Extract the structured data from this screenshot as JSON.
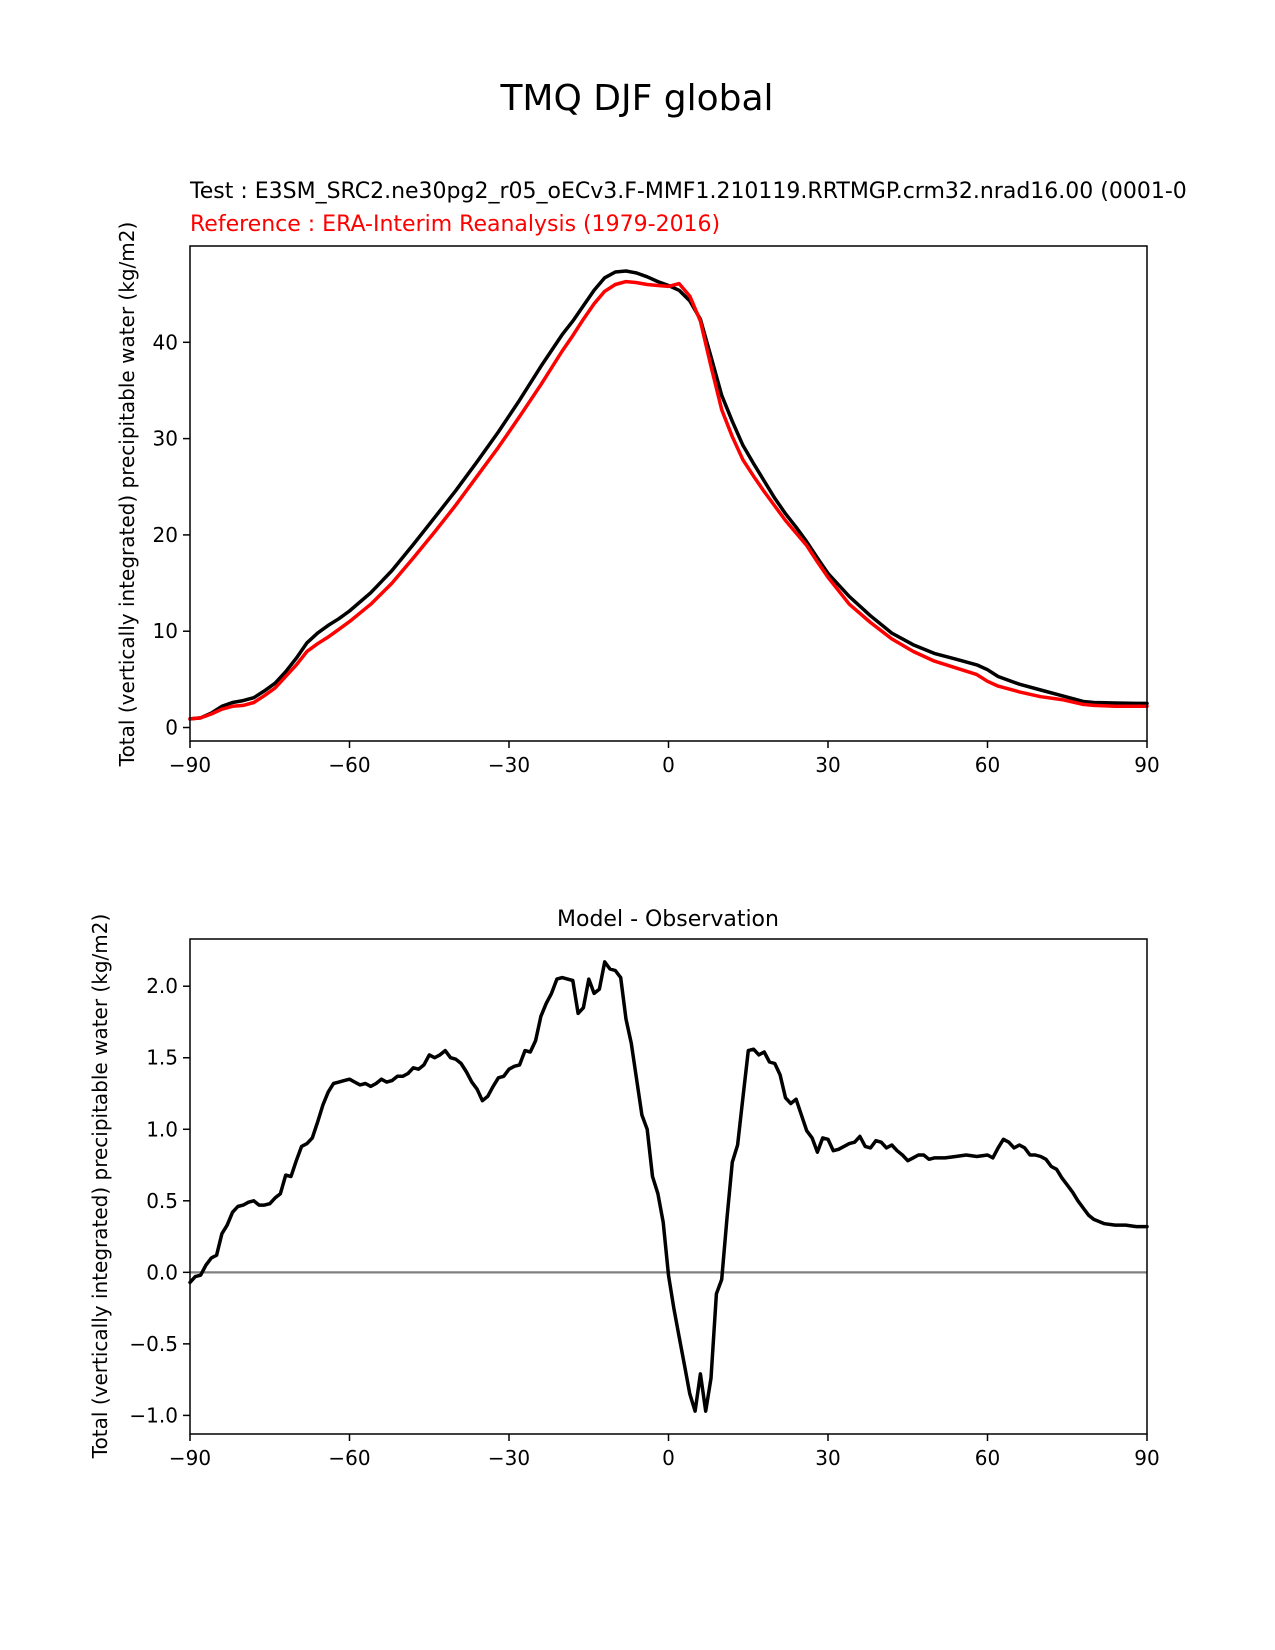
{
  "suptitle": "TMQ DJF global",
  "chart_data": [
    {
      "type": "line",
      "title_test": "Test : E3SM_SRC2.ne30pg2_r05_oECv3.F-MMF1.210119.RRTMGP.crm32.nrad16.00 (0001-0",
      "title_ref": "Reference : ERA-Interim Reanalysis (1979-2016)",
      "xlabel": "",
      "ylabel": "Total (vertically integrated) precipitable water (kg/m2)",
      "xlim": [
        -90,
        90
      ],
      "ylim": [
        -1.4,
        50
      ],
      "xticks": [
        -90,
        -60,
        -30,
        0,
        30,
        60,
        90
      ],
      "xtick_labels": [
        "−90",
        "−60",
        "−30",
        "0",
        "30",
        "60",
        "90"
      ],
      "yticks": [
        0,
        10,
        20,
        30,
        40
      ],
      "ytick_labels": [
        "0",
        "10",
        "20",
        "30",
        "40"
      ],
      "series": [
        {
          "name": "Test",
          "color": "#000000",
          "x": [
            -90,
            -88,
            -86,
            -84,
            -82,
            -80,
            -78,
            -76,
            -74,
            -72,
            -70,
            -68,
            -66,
            -64,
            -62,
            -60,
            -56,
            -52,
            -48,
            -44,
            -40,
            -36,
            -32,
            -28,
            -24,
            -20,
            -18,
            -16,
            -14,
            -12,
            -10,
            -8,
            -6,
            -4,
            -2,
            0,
            2,
            4,
            6,
            8,
            10,
            12,
            14,
            16,
            18,
            20,
            22,
            24,
            26,
            28,
            30,
            34,
            38,
            42,
            46,
            50,
            54,
            58,
            60,
            62,
            66,
            70,
            74,
            78,
            80,
            84,
            88,
            90
          ],
          "y": [
            0.9,
            1.0,
            1.5,
            2.2,
            2.6,
            2.8,
            3.1,
            3.8,
            4.6,
            5.8,
            7.2,
            8.8,
            9.8,
            10.6,
            11.3,
            12.1,
            14.0,
            16.3,
            19.0,
            21.8,
            24.6,
            27.6,
            30.7,
            34.0,
            37.5,
            40.8,
            42.2,
            43.8,
            45.4,
            46.7,
            47.3,
            47.4,
            47.2,
            46.8,
            46.3,
            45.9,
            45.4,
            44.3,
            42.4,
            38.5,
            34.5,
            31.8,
            29.3,
            27.4,
            25.6,
            23.8,
            22.2,
            20.8,
            19.3,
            17.6,
            16.0,
            13.6,
            11.6,
            9.8,
            8.6,
            7.7,
            7.1,
            6.5,
            6.0,
            5.3,
            4.5,
            3.9,
            3.3,
            2.7,
            2.6,
            2.55,
            2.5,
            2.5
          ]
        },
        {
          "name": "Reference",
          "color": "#ff0000",
          "x": [
            -90,
            -88,
            -86,
            -84,
            -82,
            -80,
            -78,
            -76,
            -74,
            -72,
            -70,
            -68,
            -66,
            -64,
            -62,
            -60,
            -56,
            -52,
            -48,
            -44,
            -40,
            -36,
            -32,
            -28,
            -24,
            -20,
            -18,
            -16,
            -14,
            -12,
            -10,
            -8,
            -6,
            -4,
            -2,
            0,
            2,
            4,
            6,
            8,
            10,
            12,
            14,
            16,
            18,
            20,
            22,
            24,
            26,
            28,
            30,
            34,
            38,
            42,
            46,
            50,
            54,
            58,
            60,
            62,
            66,
            70,
            74,
            78,
            80,
            84,
            88,
            90
          ],
          "y": [
            0.9,
            1.0,
            1.4,
            1.9,
            2.2,
            2.3,
            2.6,
            3.3,
            4.1,
            5.3,
            6.5,
            7.9,
            8.7,
            9.4,
            10.2,
            11.0,
            12.8,
            15.0,
            17.6,
            20.3,
            23.1,
            26.1,
            29.1,
            32.3,
            35.6,
            39.1,
            40.7,
            42.4,
            44.0,
            45.3,
            46.0,
            46.3,
            46.2,
            46.0,
            45.9,
            45.8,
            46.1,
            44.8,
            42.2,
            37.5,
            33.0,
            30.2,
            27.8,
            26.1,
            24.5,
            23.0,
            21.5,
            20.2,
            18.9,
            17.2,
            15.6,
            12.8,
            10.9,
            9.2,
            7.9,
            6.9,
            6.2,
            5.5,
            4.8,
            4.3,
            3.7,
            3.2,
            2.9,
            2.4,
            2.3,
            2.2,
            2.2,
            2.2
          ]
        }
      ]
    },
    {
      "type": "line",
      "title": "Model - Observation",
      "xlabel": "",
      "ylabel": "Total (vertically integrated) precipitable water (kg/m2)",
      "xlim": [
        -90,
        90
      ],
      "ylim": [
        -1.13,
        2.33
      ],
      "xticks": [
        -90,
        -60,
        -30,
        0,
        30,
        60,
        90
      ],
      "xtick_labels": [
        "−90",
        "−60",
        "−30",
        "0",
        "30",
        "60",
        "90"
      ],
      "yticks": [
        -1.0,
        -0.5,
        0.0,
        0.5,
        1.0,
        1.5,
        2.0
      ],
      "ytick_labels": [
        "−1.0",
        "−0.5",
        "0.0",
        "0.5",
        "1.0",
        "1.5",
        "2.0"
      ],
      "reference_line": {
        "y": 0,
        "color": "#808080"
      },
      "series": [
        {
          "name": "Model - Observation",
          "color": "#000000",
          "x": [
            -90,
            -89,
            -88,
            -87,
            -86,
            -85,
            -84,
            -83,
            -82,
            -81,
            -80,
            -79,
            -78,
            -77,
            -76,
            -75,
            -74,
            -73,
            -72,
            -71,
            -70,
            -69,
            -68,
            -67,
            -66,
            -65,
            -64,
            -63,
            -62,
            -61,
            -60,
            -59,
            -58,
            -57,
            -56,
            -55,
            -54,
            -53,
            -52,
            -51,
            -50,
            -49,
            -48,
            -47,
            -46,
            -45,
            -44,
            -43,
            -42,
            -41,
            -40,
            -39,
            -38,
            -37,
            -36,
            -35,
            -34,
            -33,
            -32,
            -31,
            -30,
            -29,
            -28,
            -27,
            -26,
            -25,
            -24,
            -23,
            -22,
            -21,
            -20,
            -19,
            -18,
            -17,
            -16,
            -15,
            -14,
            -13,
            -12,
            -11,
            -10,
            -9,
            -8,
            -7,
            -6,
            -5,
            -4,
            -3,
            -2,
            -1,
            0,
            1,
            2,
            3,
            4,
            5,
            6,
            7,
            8,
            9,
            10,
            11,
            12,
            13,
            14,
            15,
            16,
            17,
            18,
            19,
            20,
            21,
            22,
            23,
            24,
            25,
            26,
            27,
            28,
            29,
            30,
            31,
            32,
            33,
            34,
            35,
            36,
            37,
            38,
            39,
            40,
            41,
            42,
            43,
            44,
            45,
            46,
            47,
            48,
            49,
            50,
            52,
            54,
            56,
            58,
            60,
            61,
            62,
            63,
            64,
            65,
            66,
            67,
            68,
            69,
            70,
            71,
            72,
            73,
            74,
            75,
            76,
            77,
            78,
            79,
            80,
            82,
            84,
            86,
            88,
            90
          ],
          "y": [
            -0.07,
            -0.03,
            -0.02,
            0.05,
            0.1,
            0.12,
            0.27,
            0.33,
            0.42,
            0.46,
            0.47,
            0.49,
            0.5,
            0.47,
            0.47,
            0.48,
            0.52,
            0.55,
            0.68,
            0.67,
            0.78,
            0.88,
            0.9,
            0.94,
            1.05,
            1.17,
            1.26,
            1.32,
            1.33,
            1.34,
            1.35,
            1.33,
            1.31,
            1.32,
            1.3,
            1.32,
            1.35,
            1.33,
            1.34,
            1.37,
            1.37,
            1.39,
            1.43,
            1.42,
            1.45,
            1.52,
            1.5,
            1.52,
            1.55,
            1.5,
            1.49,
            1.46,
            1.4,
            1.33,
            1.28,
            1.2,
            1.23,
            1.3,
            1.36,
            1.37,
            1.42,
            1.44,
            1.45,
            1.55,
            1.54,
            1.62,
            1.79,
            1.88,
            1.95,
            2.05,
            2.06,
            2.05,
            2.04,
            1.81,
            1.85,
            2.05,
            1.95,
            1.98,
            2.17,
            2.12,
            2.11,
            2.06,
            1.77,
            1.6,
            1.35,
            1.1,
            1.0,
            0.67,
            0.55,
            0.35,
            -0.02,
            -0.25,
            -0.45,
            -0.65,
            -0.85,
            -0.97,
            -0.71,
            -0.97,
            -0.74,
            -0.15,
            -0.05,
            0.38,
            0.77,
            0.89,
            1.22,
            1.55,
            1.56,
            1.52,
            1.54,
            1.47,
            1.46,
            1.38,
            1.22,
            1.18,
            1.21,
            1.1,
            0.99,
            0.94,
            0.84,
            0.94,
            0.93,
            0.85,
            0.86,
            0.88,
            0.9,
            0.91,
            0.95,
            0.88,
            0.87,
            0.92,
            0.91,
            0.87,
            0.89,
            0.85,
            0.82,
            0.78,
            0.8,
            0.82,
            0.82,
            0.79,
            0.8,
            0.8,
            0.81,
            0.82,
            0.81,
            0.82,
            0.8,
            0.87,
            0.93,
            0.91,
            0.87,
            0.89,
            0.87,
            0.82,
            0.82,
            0.81,
            0.79,
            0.74,
            0.72,
            0.66,
            0.61,
            0.56,
            0.5,
            0.45,
            0.4,
            0.37,
            0.34,
            0.33,
            0.33,
            0.32,
            0.32
          ]
        }
      ]
    }
  ]
}
